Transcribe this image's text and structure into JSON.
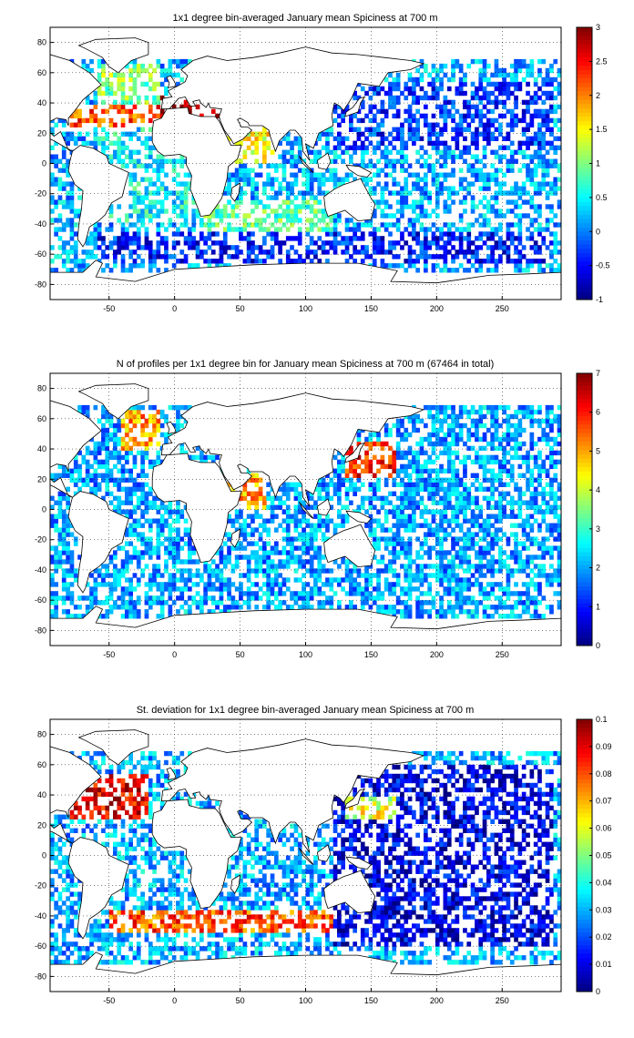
{
  "chart_data": [
    {
      "type": "heatmap",
      "title": "1x1 degree bin-averaged January mean Spiciness at 700 m",
      "xlabel": "",
      "ylabel": "",
      "xlim": [
        -95,
        295
      ],
      "ylim": [
        -90,
        90
      ],
      "xticks": [
        -50,
        0,
        50,
        100,
        150,
        200,
        250
      ],
      "yticks": [
        -80,
        -60,
        -40,
        -20,
        0,
        20,
        40,
        60,
        80
      ],
      "grid": true,
      "colorbar": {
        "range": [
          -1,
          3
        ],
        "ticks": [
          -1,
          -0.5,
          0,
          0.5,
          1,
          1.5,
          2,
          2.5,
          3
        ],
        "tick_labels": [
          "-1",
          "-0.5",
          "0",
          "0.5",
          "1",
          "1.5",
          "2",
          "2.5",
          "3"
        ],
        "colormap": "jet"
      },
      "regions": [
        {
          "lon": [
            -80,
            -10
          ],
          "lat": [
            25,
            40
          ],
          "value": 2.2
        },
        {
          "lon": [
            -60,
            -10
          ],
          "lat": [
            40,
            65
          ],
          "value": 1.0
        },
        {
          "lon": [
            -10,
            40
          ],
          "lat": [
            30,
            45
          ],
          "value": 3.0
        },
        {
          "lon": [
            40,
            75
          ],
          "lat": [
            0,
            30
          ],
          "value": 1.5
        },
        {
          "lon": [
            20,
            120
          ],
          "lat": [
            -45,
            -25
          ],
          "value": 0.8
        },
        {
          "lon": [
            -60,
            20
          ],
          "lat": [
            -40,
            25
          ],
          "value": 0.5
        },
        {
          "lon": [
            120,
            290
          ],
          "lat": [
            10,
            55
          ],
          "value": -0.3
        },
        {
          "lon": [
            120,
            290
          ],
          "lat": [
            -40,
            10
          ],
          "value": 0.2
        },
        {
          "lon": [
            -60,
            290
          ],
          "lat": [
            -65,
            -45
          ],
          "value": -0.4
        }
      ]
    },
    {
      "type": "heatmap",
      "title": "N of profiles per 1x1 degree bin for January mean Spiciness at 700 m (67464 in total)",
      "xlabel": "",
      "ylabel": "",
      "xlim": [
        -95,
        295
      ],
      "ylim": [
        -90,
        90
      ],
      "xticks": [
        -50,
        0,
        50,
        100,
        150,
        200,
        250
      ],
      "yticks": [
        -80,
        -60,
        -40,
        -20,
        0,
        20,
        40,
        60,
        80
      ],
      "grid": true,
      "colorbar": {
        "range": [
          0,
          7
        ],
        "ticks": [
          0,
          1,
          2,
          3,
          4,
          5,
          6,
          7
        ],
        "tick_labels": [
          "0",
          "1",
          "2",
          "3",
          "4",
          "5",
          "6",
          "7"
        ],
        "colormap": "jet"
      },
      "regions": [
        {
          "lon": [
            130,
            170
          ],
          "lat": [
            20,
            45
          ],
          "value": 6
        },
        {
          "lon": [
            -40,
            -10
          ],
          "lat": [
            40,
            65
          ],
          "value": 5
        },
        {
          "lon": [
            40,
            70
          ],
          "lat": [
            0,
            25
          ],
          "value": 5
        },
        {
          "lon": [
            -95,
            295
          ],
          "lat": [
            -65,
            60
          ],
          "value": 2
        }
      ]
    },
    {
      "type": "heatmap",
      "title": "St. deviation for 1x1 degree bin-averaged January mean Spiciness at 700 m",
      "xlabel": "",
      "ylabel": "",
      "xlim": [
        -95,
        295
      ],
      "ylim": [
        -90,
        90
      ],
      "xticks": [
        -50,
        0,
        50,
        100,
        150,
        200,
        250
      ],
      "yticks": [
        -80,
        -60,
        -40,
        -20,
        0,
        20,
        40,
        60,
        80
      ],
      "grid": true,
      "colorbar": {
        "range": [
          0,
          0.1
        ],
        "ticks": [
          0,
          0.01,
          0.02,
          0.03,
          0.04,
          0.05,
          0.06,
          0.07,
          0.08,
          0.09,
          0.1
        ],
        "tick_labels": [
          "0",
          "0.01",
          "0.02",
          "0.03",
          "0.04",
          "0.05",
          "0.06",
          "0.07",
          "0.08",
          "0.09",
          "0.1"
        ],
        "colormap": "jet"
      },
      "regions": [
        {
          "lon": [
            -80,
            -20
          ],
          "lat": [
            25,
            55
          ],
          "value": 0.09
        },
        {
          "lon": [
            -50,
            120
          ],
          "lat": [
            -50,
            -35
          ],
          "value": 0.08
        },
        {
          "lon": [
            130,
            170
          ],
          "lat": [
            25,
            40
          ],
          "value": 0.06
        },
        {
          "lon": [
            120,
            290
          ],
          "lat": [
            -60,
            60
          ],
          "value": 0.01
        }
      ]
    }
  ]
}
